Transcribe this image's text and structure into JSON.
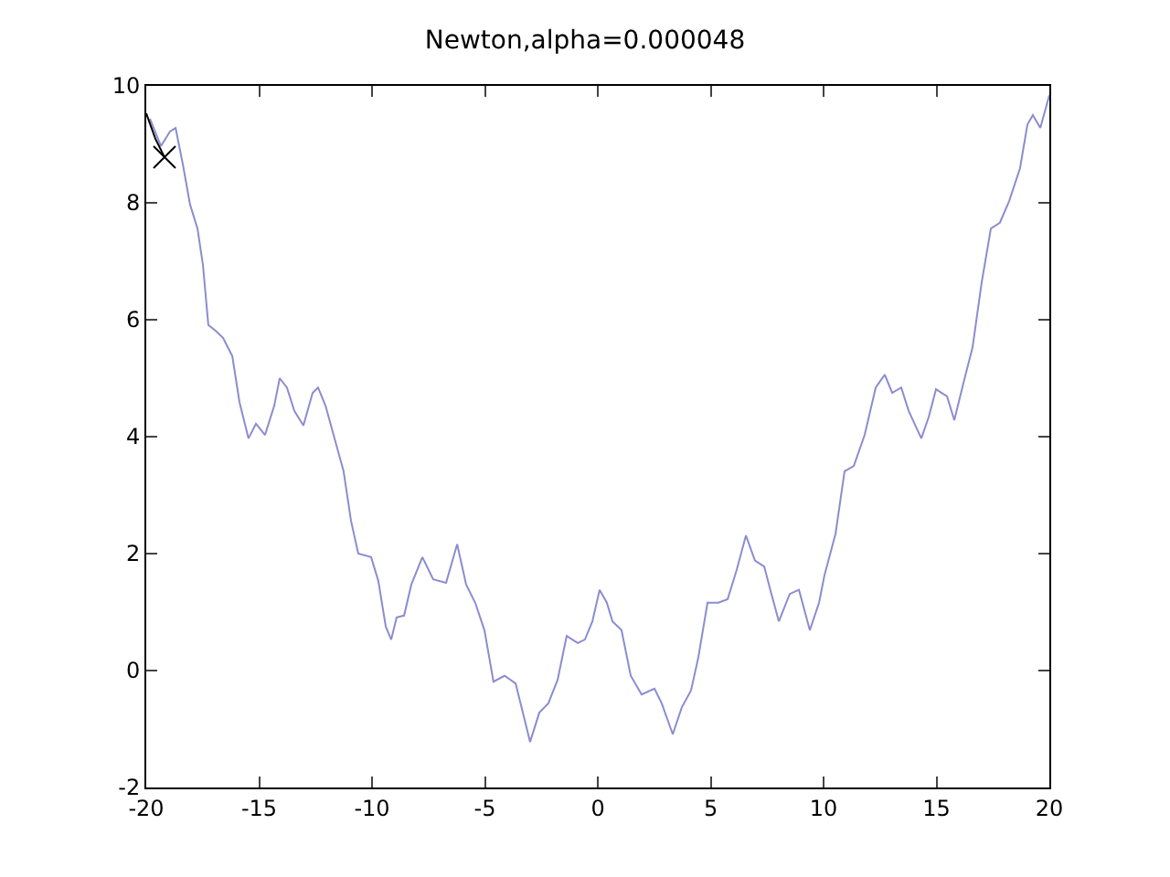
{
  "chart_data": {
    "type": "line",
    "title": "Newton,alpha=0.000048",
    "xlim": [
      -20,
      20
    ],
    "xticks": [
      -20,
      -15,
      -10,
      -5,
      0,
      5,
      10,
      15,
      20
    ],
    "ylim": [
      -2,
      10
    ],
    "yticks": [
      -2,
      0,
      2,
      4,
      6,
      8,
      10
    ],
    "grid": false,
    "series": [
      {
        "color": "#8c8cd0",
        "marker": "none",
        "x": [
          -19.84,
          -19.35,
          -18.95,
          -18.7,
          -18.38,
          -18.06,
          -17.73,
          -17.49,
          -17.25,
          -16.92,
          -16.6,
          -16.19,
          -15.87,
          -15.47,
          -15.14,
          -14.74,
          -14.33,
          -14.09,
          -13.77,
          -13.44,
          -13.04,
          -12.63,
          -12.39,
          -12.06,
          -11.66,
          -11.26,
          -10.93,
          -10.61,
          -10.04,
          -9.72,
          -9.39,
          -9.15,
          -8.91,
          -8.58,
          -8.26,
          -7.77,
          -7.29,
          -6.72,
          -6.23,
          -5.83,
          -5.43,
          -5.02,
          -4.62,
          -4.13,
          -3.64,
          -3.32,
          -3.0,
          -2.59,
          -2.19,
          -1.78,
          -1.38,
          -0.89,
          -0.57,
          -0.24,
          0.08,
          0.4,
          0.65,
          1.05,
          1.46,
          1.94,
          2.51,
          2.83,
          3.32,
          3.72,
          4.13,
          4.45,
          4.86,
          5.34,
          5.75,
          6.15,
          6.56,
          6.96,
          7.37,
          7.69,
          8.02,
          8.5,
          8.91,
          9.39,
          9.8,
          10.04,
          10.53,
          10.93,
          11.34,
          11.82,
          12.31,
          12.71,
          13.04,
          13.44,
          13.77,
          14.33,
          14.66,
          14.98,
          15.47,
          15.79,
          16.19,
          16.6,
          17.0,
          17.41,
          17.81,
          18.22,
          18.7,
          19.03,
          19.27,
          19.6,
          20.0
        ],
        "values": [
          9.44,
          8.97,
          9.22,
          9.28,
          8.66,
          7.97,
          7.56,
          6.94,
          5.91,
          5.81,
          5.69,
          5.38,
          4.59,
          3.97,
          4.22,
          4.03,
          4.53,
          5.0,
          4.84,
          4.44,
          4.19,
          4.75,
          4.84,
          4.53,
          3.97,
          3.41,
          2.56,
          2.0,
          1.94,
          1.53,
          0.75,
          0.53,
          0.91,
          0.94,
          1.47,
          1.94,
          1.56,
          1.5,
          2.16,
          1.47,
          1.16,
          0.69,
          -0.19,
          -0.09,
          -0.22,
          -0.72,
          -1.22,
          -0.72,
          -0.56,
          -0.16,
          0.59,
          0.47,
          0.53,
          0.84,
          1.38,
          1.16,
          0.84,
          0.69,
          -0.09,
          -0.41,
          -0.31,
          -0.56,
          -1.09,
          -0.63,
          -0.34,
          0.22,
          1.16,
          1.16,
          1.22,
          1.72,
          2.31,
          1.88,
          1.78,
          1.31,
          0.84,
          1.31,
          1.38,
          0.69,
          1.16,
          1.63,
          2.34,
          3.41,
          3.5,
          4.03,
          4.84,
          5.06,
          4.75,
          4.84,
          4.44,
          3.97,
          4.34,
          4.81,
          4.69,
          4.28,
          4.91,
          5.53,
          6.63,
          7.56,
          7.66,
          8.03,
          8.59,
          9.34,
          9.5,
          9.28,
          9.84
        ]
      },
      {
        "color": "#000000",
        "marker": "none",
        "x": [
          -20,
          -19.6,
          -19.19
        ],
        "values": [
          9.53,
          9.1,
          8.78
        ]
      },
      {
        "type": "scatter",
        "color": "#000000",
        "marker": "cross",
        "x": [
          -19.19
        ],
        "values": [
          8.78
        ]
      }
    ]
  }
}
